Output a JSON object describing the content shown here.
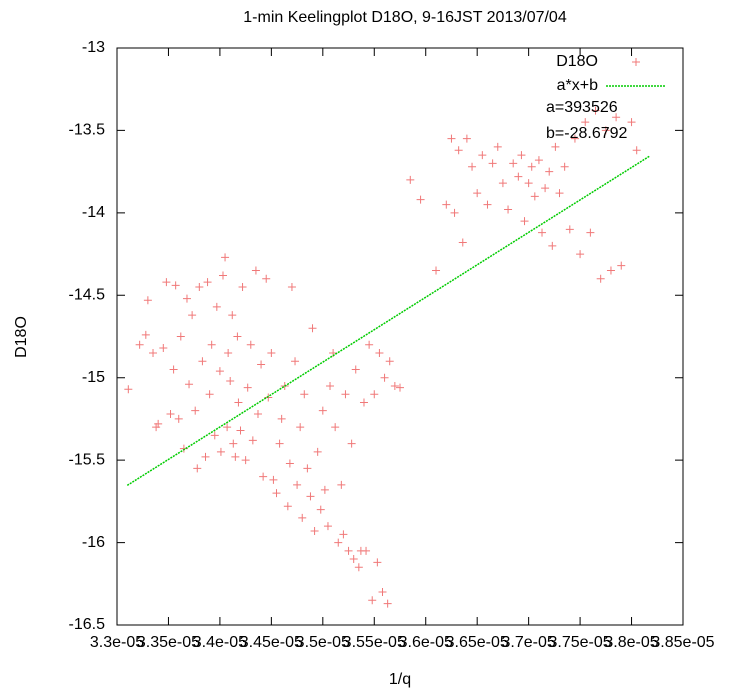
{
  "chart_data": {
    "type": "scatter",
    "title": "1-min Keelingplot D18O, 9-16JST 2013/07/04",
    "x_label": "1/q",
    "y_label": "D18O",
    "xlim": [
      3.3e-05,
      3.85e-05
    ],
    "ylim": [
      -16.5,
      -13
    ],
    "xticks": [
      {
        "value": 3.3e-05,
        "label": "3.3e-05"
      },
      {
        "value": 3.35e-05,
        "label": "3.35e-05"
      },
      {
        "value": 3.4e-05,
        "label": "3.4e-05"
      },
      {
        "value": 3.45e-05,
        "label": "3.45e-05"
      },
      {
        "value": 3.5e-05,
        "label": "3.5e-05"
      },
      {
        "value": 3.55e-05,
        "label": "3.55e-05"
      },
      {
        "value": 3.6e-05,
        "label": "3.6e-05"
      },
      {
        "value": 3.65e-05,
        "label": "3.65e-05"
      },
      {
        "value": 3.7e-05,
        "label": "3.7e-05"
      },
      {
        "value": 3.75e-05,
        "label": "3.75e-05"
      },
      {
        "value": 3.8e-05,
        "label": "3.8e-05"
      },
      {
        "value": 3.85e-05,
        "label": "3.85e-05"
      }
    ],
    "yticks": [
      -16.5,
      -16,
      -15.5,
      -15,
      -14.5,
      -14,
      -13.5,
      -13
    ],
    "legend": "top-right",
    "annotations": [
      "a=393526",
      "b=-28.6792"
    ],
    "series": [
      {
        "name": "D18O",
        "color": "#f07878",
        "marker": "plus",
        "x": [
          3.311e-05,
          3.322e-05,
          3.328e-05,
          3.33e-05,
          3.335e-05,
          3.338e-05,
          3.34e-05,
          3.345e-05,
          3.348e-05,
          3.352e-05,
          3.355e-05,
          3.357e-05,
          3.36e-05,
          3.362e-05,
          3.365e-05,
          3.368e-05,
          3.37e-05,
          3.373e-05,
          3.376e-05,
          3.378e-05,
          3.38e-05,
          3.383e-05,
          3.386e-05,
          3.388e-05,
          3.39e-05,
          3.392e-05,
          3.395e-05,
          3.397e-05,
          3.4e-05,
          3.401e-05,
          3.403e-05,
          3.405e-05,
          3.407e-05,
          3.408e-05,
          3.41e-05,
          3.412e-05,
          3.413e-05,
          3.415e-05,
          3.417e-05,
          3.418e-05,
          3.42e-05,
          3.422e-05,
          3.425e-05,
          3.427e-05,
          3.43e-05,
          3.432e-05,
          3.435e-05,
          3.437e-05,
          3.44e-05,
          3.442e-05,
          3.445e-05,
          3.447e-05,
          3.45e-05,
          3.452e-05,
          3.455e-05,
          3.458e-05,
          3.46e-05,
          3.463e-05,
          3.466e-05,
          3.468e-05,
          3.47e-05,
          3.473e-05,
          3.475e-05,
          3.478e-05,
          3.48e-05,
          3.482e-05,
          3.485e-05,
          3.488e-05,
          3.49e-05,
          3.492e-05,
          3.495e-05,
          3.498e-05,
          3.5e-05,
          3.502e-05,
          3.505e-05,
          3.507e-05,
          3.51e-05,
          3.512e-05,
          3.515e-05,
          3.518e-05,
          3.52e-05,
          3.522e-05,
          3.525e-05,
          3.528e-05,
          3.53e-05,
          3.532e-05,
          3.535e-05,
          3.537e-05,
          3.54e-05,
          3.542e-05,
          3.545e-05,
          3.548e-05,
          3.55e-05,
          3.553e-05,
          3.555e-05,
          3.558e-05,
          3.56e-05,
          3.563e-05,
          3.565e-05,
          3.57e-05,
          3.575e-05,
          3.585e-05,
          3.595e-05,
          3.61e-05,
          3.62e-05,
          3.625e-05,
          3.628e-05,
          3.632e-05,
          3.636e-05,
          3.64e-05,
          3.645e-05,
          3.65e-05,
          3.655e-05,
          3.66e-05,
          3.665e-05,
          3.67e-05,
          3.675e-05,
          3.68e-05,
          3.685e-05,
          3.69e-05,
          3.693e-05,
          3.696e-05,
          3.7e-05,
          3.703e-05,
          3.706e-05,
          3.71e-05,
          3.713e-05,
          3.716e-05,
          3.72e-05,
          3.723e-05,
          3.726e-05,
          3.73e-05,
          3.735e-05,
          3.74e-05,
          3.745e-05,
          3.75e-05,
          3.755e-05,
          3.76e-05,
          3.765e-05,
          3.77e-05,
          3.775e-05,
          3.78e-05,
          3.785e-05,
          3.79e-05,
          3.8e-05,
          3.805e-05
        ],
        "values": [
          -15.07,
          -14.8,
          -14.74,
          -14.53,
          -14.85,
          -15.3,
          -15.28,
          -14.82,
          -14.42,
          -15.22,
          -14.95,
          -14.44,
          -15.25,
          -14.75,
          -15.43,
          -14.52,
          -15.04,
          -14.62,
          -15.2,
          -15.55,
          -14.45,
          -14.9,
          -15.48,
          -14.42,
          -15.1,
          -14.8,
          -15.35,
          -14.57,
          -14.96,
          -15.45,
          -14.38,
          -14.27,
          -15.3,
          -14.85,
          -15.02,
          -14.62,
          -15.4,
          -15.48,
          -14.75,
          -15.15,
          -15.32,
          -14.45,
          -15.5,
          -15.06,
          -14.8,
          -15.38,
          -14.35,
          -15.22,
          -14.92,
          -15.6,
          -14.4,
          -15.12,
          -14.85,
          -15.62,
          -15.7,
          -15.4,
          -15.25,
          -15.05,
          -15.78,
          -15.52,
          -14.45,
          -14.9,
          -15.65,
          -15.3,
          -15.85,
          -15.1,
          -15.55,
          -15.72,
          -14.7,
          -15.93,
          -15.45,
          -15.8,
          -15.2,
          -15.68,
          -15.9,
          -15.05,
          -14.85,
          -15.3,
          -16.0,
          -15.65,
          -15.95,
          -15.1,
          -16.05,
          -15.4,
          -16.1,
          -14.95,
          -16.15,
          -16.05,
          -15.15,
          -16.05,
          -14.8,
          -16.35,
          -15.1,
          -16.12,
          -14.85,
          -16.3,
          -15.0,
          -16.37,
          -14.9,
          -15.05,
          -15.06,
          -13.8,
          -13.92,
          -14.35,
          -13.95,
          -13.55,
          -14.0,
          -13.62,
          -14.18,
          -13.55,
          -13.72,
          -13.88,
          -13.65,
          -13.95,
          -13.7,
          -13.6,
          -13.82,
          -13.98,
          -13.7,
          -13.78,
          -13.65,
          -14.05,
          -13.82,
          -13.72,
          -13.9,
          -13.68,
          -14.12,
          -13.85,
          -13.75,
          -14.2,
          -13.6,
          -13.88,
          -13.72,
          -14.1,
          -13.55,
          -14.25,
          -13.45,
          -14.12,
          -13.38,
          -14.4,
          -13.5,
          -14.35,
          -13.42,
          -14.32,
          -13.45,
          -13.62
        ]
      },
      {
        "name": "a*x+b",
        "color": "#00cc00",
        "marker": "line",
        "x": [
          3.31e-05,
          3.818e-05
        ],
        "values": [
          -15.653,
          -13.654
        ]
      }
    ]
  }
}
